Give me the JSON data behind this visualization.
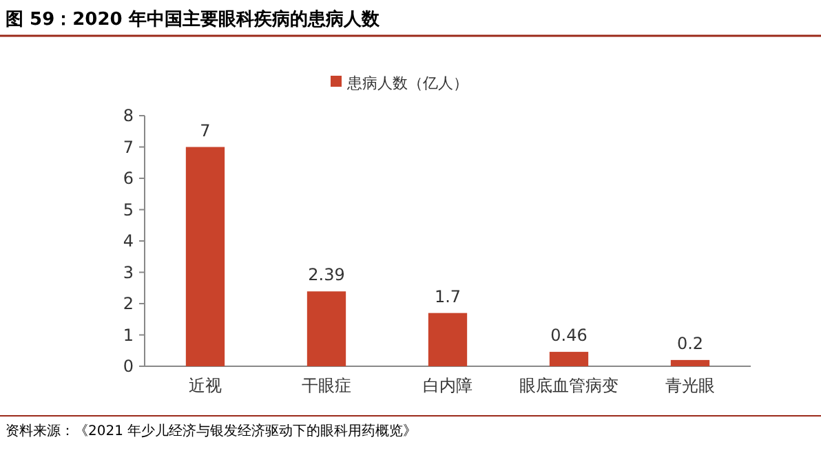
{
  "chart_data": {
    "type": "bar",
    "title": "图 59：2020 年中国主要眼科疾病的患病人数",
    "categories": [
      "近视",
      "干眼症",
      "白内障",
      "眼底血管病变",
      "青光眼"
    ],
    "series": [
      {
        "name": "患病人数（亿人）",
        "color": "#c9432b",
        "values": [
          7,
          2.39,
          1.7,
          0.46,
          0.2
        ]
      }
    ],
    "ylim": [
      0,
      8
    ],
    "yticks": [
      0,
      1,
      2,
      3,
      4,
      5,
      6,
      7,
      8
    ],
    "data_labels": true,
    "legend": "top",
    "grid": false,
    "annotations": [
      "资料来源：《2021 年少儿经济与银发经济驱动下的眼科用药概览》"
    ]
  }
}
